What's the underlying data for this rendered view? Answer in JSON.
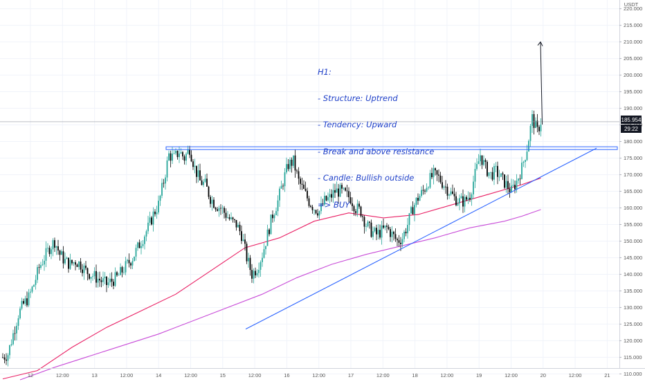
{
  "chart_data": {
    "type": "candlestick",
    "currency_label": "USDT",
    "ylim": [
      108,
      222
    ],
    "y_ticks": [
      110,
      115,
      120,
      125,
      130,
      135,
      140,
      145,
      150,
      155,
      160,
      165,
      170,
      175,
      180,
      185,
      190,
      195,
      200,
      205,
      210,
      215,
      220
    ],
    "x_ticks": [
      "12",
      "12:00",
      "13",
      "12:00",
      "14",
      "12:00",
      "15",
      "12:00",
      "16",
      "12:00",
      "17",
      "12:00",
      "18",
      "12:00",
      "19",
      "12:00",
      "20",
      "12:00",
      "21"
    ],
    "last_price_label": "185.954",
    "last_price": 185.954,
    "countdown_label": "29:22",
    "resistance_level": 178,
    "support_trendline": {
      "from": 123.5,
      "to": 178
    },
    "projection_target": 210,
    "annotation_lines": [
      "H1:",
      "- Structure: Uptrend",
      "- Tendency: Upward",
      "- Break and above resistance",
      "- Candle: Bullish outside",
      "=> BUY"
    ],
    "colors": {
      "bull": "#26a69a",
      "bear": "#000000",
      "ma_fast": "#e91e63",
      "ma_slow": "#c84bd8",
      "lines": "#2962ff",
      "annotation": "#1e3fc8"
    },
    "price_path": [
      [
        0,
        115
      ],
      [
        3,
        116
      ],
      [
        6,
        122
      ],
      [
        9,
        128
      ],
      [
        12,
        131
      ],
      [
        15,
        133
      ],
      [
        18,
        137
      ],
      [
        21,
        142
      ],
      [
        24,
        145
      ],
      [
        27,
        148
      ],
      [
        30,
        150
      ],
      [
        33,
        146
      ],
      [
        36,
        144
      ],
      [
        39,
        143
      ],
      [
        42,
        144
      ],
      [
        45,
        143
      ],
      [
        48,
        141
      ],
      [
        51,
        140
      ],
      [
        54,
        139
      ],
      [
        57,
        138
      ],
      [
        60,
        137
      ],
      [
        63,
        138
      ],
      [
        66,
        139
      ],
      [
        69,
        141
      ],
      [
        72,
        143
      ],
      [
        75,
        145
      ],
      [
        78,
        148
      ],
      [
        81,
        151
      ],
      [
        84,
        154
      ],
      [
        87,
        158
      ],
      [
        90,
        161
      ],
      [
        93,
        168
      ],
      [
        96,
        176
      ],
      [
        99,
        175
      ],
      [
        102,
        177
      ],
      [
        105,
        175
      ],
      [
        108,
        178
      ],
      [
        111,
        172
      ],
      [
        114,
        168
      ],
      [
        117,
        167
      ],
      [
        120,
        163
      ],
      [
        123,
        161
      ],
      [
        126,
        160
      ],
      [
        129,
        158
      ],
      [
        132,
        156
      ],
      [
        135,
        155
      ],
      [
        138,
        152
      ],
      [
        141,
        145
      ],
      [
        144,
        140
      ],
      [
        147,
        142
      ],
      [
        150,
        146
      ],
      [
        153,
        152
      ],
      [
        156,
        158
      ],
      [
        159,
        162
      ],
      [
        162,
        168
      ],
      [
        165,
        173
      ],
      [
        168,
        174
      ],
      [
        171,
        168
      ],
      [
        174,
        165
      ],
      [
        177,
        162
      ],
      [
        180,
        160
      ],
      [
        183,
        159
      ],
      [
        186,
        162
      ],
      [
        189,
        163
      ],
      [
        192,
        165
      ],
      [
        195,
        165
      ],
      [
        198,
        164
      ],
      [
        201,
        163
      ],
      [
        204,
        160
      ],
      [
        207,
        159
      ],
      [
        210,
        155
      ],
      [
        213,
        153
      ],
      [
        216,
        152
      ],
      [
        219,
        153
      ],
      [
        222,
        154
      ],
      [
        225,
        152
      ],
      [
        228,
        150
      ],
      [
        231,
        151
      ],
      [
        234,
        155
      ],
      [
        237,
        160
      ],
      [
        240,
        163
      ],
      [
        243,
        165
      ],
      [
        246,
        168
      ],
      [
        249,
        170
      ],
      [
        252,
        169
      ],
      [
        255,
        167
      ],
      [
        258,
        165
      ],
      [
        261,
        163
      ],
      [
        264,
        162
      ],
      [
        267,
        162
      ],
      [
        270,
        164
      ],
      [
        273,
        170
      ],
      [
        276,
        176
      ],
      [
        279,
        172
      ],
      [
        282,
        170
      ],
      [
        285,
        171
      ],
      [
        288,
        169
      ],
      [
        291,
        167
      ],
      [
        294,
        165
      ],
      [
        297,
        168
      ],
      [
        300,
        172
      ],
      [
        303,
        178
      ],
      [
        306,
        187
      ],
      [
        309,
        183
      ],
      [
        311,
        186
      ]
    ],
    "ma_fast": [
      [
        0,
        108.5
      ],
      [
        20,
        111
      ],
      [
        40,
        118
      ],
      [
        60,
        124
      ],
      [
        80,
        129
      ],
      [
        100,
        134
      ],
      [
        120,
        141
      ],
      [
        140,
        148
      ],
      [
        160,
        151
      ],
      [
        180,
        156
      ],
      [
        200,
        158.5
      ],
      [
        220,
        157
      ],
      [
        240,
        158
      ],
      [
        260,
        161
      ],
      [
        280,
        164
      ],
      [
        300,
        167
      ],
      [
        311,
        169
      ]
    ],
    "ma_slow": [
      [
        10,
        108.2
      ],
      [
        30,
        112
      ],
      [
        60,
        117
      ],
      [
        90,
        122
      ],
      [
        120,
        128
      ],
      [
        150,
        134
      ],
      [
        170,
        139
      ],
      [
        190,
        143
      ],
      [
        210,
        146
      ],
      [
        230,
        148.5
      ],
      [
        250,
        151
      ],
      [
        270,
        154
      ],
      [
        290,
        156
      ],
      [
        300,
        157.5
      ],
      [
        311,
        159.5
      ]
    ]
  }
}
